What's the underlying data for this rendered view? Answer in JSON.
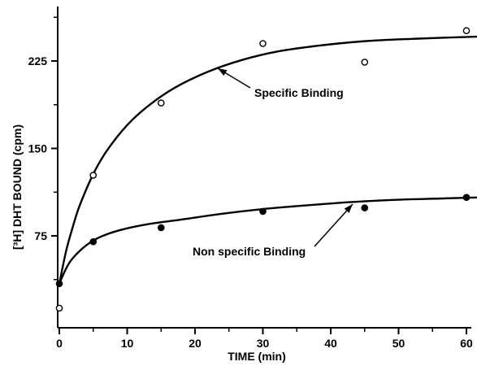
{
  "chart_data": {
    "type": "scatter",
    "xlabel": "TIME (min)",
    "ylabel": "[³H] DHT BOUND (cpm)",
    "xlim": [
      0,
      62
    ],
    "ylim": [
      0,
      265
    ],
    "x_ticks": [
      0,
      10,
      20,
      30,
      40,
      50,
      60
    ],
    "y_ticks": [
      75,
      150,
      225
    ],
    "grid": false,
    "series": [
      {
        "name": "Specific Binding",
        "marker": "open-circle",
        "points": [
          [
            0,
            13
          ],
          [
            5,
            127
          ],
          [
            15,
            189
          ],
          [
            30,
            240
          ],
          [
            45,
            224
          ],
          [
            60,
            251
          ]
        ],
        "fit": [
          [
            0,
            34
          ],
          [
            1,
            62
          ],
          [
            2,
            83
          ],
          [
            3,
            101
          ],
          [
            5,
            128
          ],
          [
            7,
            148
          ],
          [
            10,
            170
          ],
          [
            13,
            186
          ],
          [
            17,
            202
          ],
          [
            22,
            216
          ],
          [
            27,
            226
          ],
          [
            32,
            233
          ],
          [
            38,
            238
          ],
          [
            45,
            242
          ],
          [
            52,
            244
          ],
          [
            62,
            246
          ]
        ]
      },
      {
        "name": "Non specific Binding",
        "marker": "filled-circle",
        "points": [
          [
            0,
            34
          ],
          [
            5,
            70
          ],
          [
            15,
            82
          ],
          [
            30,
            96
          ],
          [
            45,
            99
          ],
          [
            60,
            108
          ]
        ],
        "fit": [
          [
            0,
            34
          ],
          [
            1,
            47
          ],
          [
            2,
            56
          ],
          [
            4,
            67
          ],
          [
            6,
            74
          ],
          [
            9,
            80
          ],
          [
            13,
            85
          ],
          [
            18,
            89
          ],
          [
            24,
            94
          ],
          [
            30,
            98
          ],
          [
            36,
            101
          ],
          [
            43,
            104
          ],
          [
            50,
            106
          ],
          [
            56,
            107
          ],
          [
            62,
            108
          ]
        ]
      }
    ],
    "annotations": [
      {
        "text": "Specific Binding",
        "series_index": 0
      },
      {
        "text": "Non specific Binding",
        "series_index": 1
      }
    ]
  }
}
